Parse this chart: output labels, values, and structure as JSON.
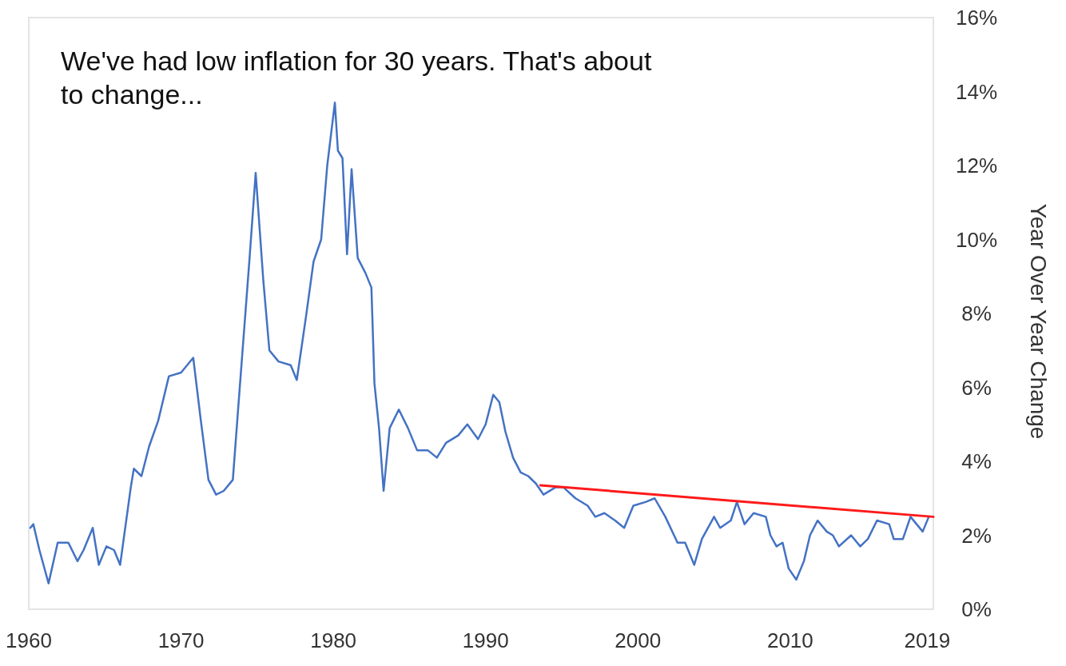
{
  "chart_data": {
    "type": "line",
    "annotations": [
      "We've had low inflation for 30 years. That's about to change..."
    ],
    "ylabel": "Year Over Year Change",
    "xlim": [
      1960,
      2019.4
    ],
    "xticks": [
      {
        "value": 1960,
        "label": "1960"
      },
      {
        "value": 1970,
        "label": "1970"
      },
      {
        "value": 1980,
        "label": "1980"
      },
      {
        "value": 1990,
        "label": "1990"
      },
      {
        "value": 2000,
        "label": "2000"
      },
      {
        "value": 2010,
        "label": "2010"
      },
      {
        "value": 2019,
        "label": "2019"
      }
    ],
    "ylim": [
      0,
      16
    ],
    "yticks": [
      {
        "value": 0,
        "label": "0%"
      },
      {
        "value": 2,
        "label": "2%"
      },
      {
        "value": 4,
        "label": "4%"
      },
      {
        "value": 6,
        "label": "6%"
      },
      {
        "value": 8,
        "label": "8%"
      },
      {
        "value": 10,
        "label": "10%"
      },
      {
        "value": 12,
        "label": "12%"
      },
      {
        "value": 14,
        "label": "14%"
      },
      {
        "value": 16,
        "label": "16%"
      }
    ],
    "grid": false,
    "series": [
      {
        "color": "#4472c4",
        "x": [
          1960.1,
          1960.3,
          1960.7,
          1961.3,
          1961.9,
          1962.6,
          1963.2,
          1963.6,
          1964.2,
          1964.6,
          1965.1,
          1965.6,
          1966.0,
          1966.7,
          1966.9,
          1967.4,
          1967.9,
          1968.5,
          1969.2,
          1970.0,
          1970.8,
          1971.3,
          1971.8,
          1972.3,
          1972.8,
          1973.4,
          1973.8,
          1974.5,
          1974.9,
          1975.4,
          1975.8,
          1976.4,
          1977.2,
          1977.6,
          1978.2,
          1978.7,
          1979.2,
          1979.6,
          1980.1,
          1980.3,
          1980.6,
          1980.9,
          1981.2,
          1981.6,
          1982.1,
          1982.5,
          1982.7,
          1983.0,
          1983.3,
          1983.7,
          1984.3,
          1984.9,
          1985.5,
          1986.2,
          1986.8,
          1987.4,
          1988.2,
          1988.8,
          1989.5,
          1990.0,
          1990.5,
          1990.9,
          1991.3,
          1991.8,
          1992.3,
          1992.8,
          1993.3,
          1993.8,
          1994.6,
          1995.1,
          1995.9,
          1996.7,
          1997.2,
          1997.8,
          1998.5,
          1999.1,
          1999.7,
          2000.5,
          2001.1,
          2001.8,
          2002.6,
          2003.1,
          2003.7,
          2004.2,
          2005.0,
          2005.4,
          2006.1,
          2006.5,
          2007.0,
          2007.6,
          2008.4,
          2008.7,
          2009.1,
          2009.5,
          2009.9,
          2010.4,
          2010.9,
          2011.3,
          2011.8,
          2012.4,
          2012.8,
          2013.2,
          2014.0,
          2014.6,
          2015.1,
          2015.7,
          2016.5,
          2016.8,
          2017.4,
          2017.9,
          2018.3,
          2018.7,
          2019.1
        ],
        "values": [
          2.2,
          2.3,
          1.6,
          0.7,
          1.8,
          1.8,
          1.3,
          1.6,
          2.2,
          1.2,
          1.7,
          1.6,
          1.2,
          3.3,
          3.8,
          3.6,
          4.4,
          5.1,
          6.3,
          6.4,
          6.8,
          5.1,
          3.5,
          3.1,
          3.2,
          3.5,
          5.7,
          9.5,
          11.8,
          8.9,
          7.0,
          6.7,
          6.6,
          6.2,
          7.9,
          9.4,
          10.0,
          12.0,
          13.7,
          12.4,
          12.2,
          9.6,
          11.9,
          9.5,
          9.1,
          8.7,
          6.1,
          4.9,
          3.2,
          4.9,
          5.4,
          4.9,
          4.3,
          4.3,
          4.1,
          4.5,
          4.7,
          5.0,
          4.6,
          5.0,
          5.8,
          5.6,
          4.8,
          4.1,
          3.7,
          3.6,
          3.4,
          3.1,
          3.3,
          3.3,
          3.0,
          2.8,
          2.5,
          2.6,
          2.4,
          2.2,
          2.8,
          2.9,
          3.0,
          2.5,
          1.8,
          1.8,
          1.2,
          1.9,
          2.5,
          2.2,
          2.4,
          2.9,
          2.3,
          2.6,
          2.5,
          2.0,
          1.7,
          1.8,
          1.1,
          0.8,
          1.3,
          2.0,
          2.4,
          2.1,
          2.0,
          1.7,
          2.0,
          1.7,
          1.9,
          2.4,
          2.3,
          1.9,
          1.9,
          2.5,
          2.3,
          2.1,
          2.5
        ]
      },
      {
        "type": "line",
        "color": "#ff1a1a",
        "x": [
          1993.6,
          2019.4
        ],
        "values": [
          3.35,
          2.5
        ]
      }
    ]
  }
}
